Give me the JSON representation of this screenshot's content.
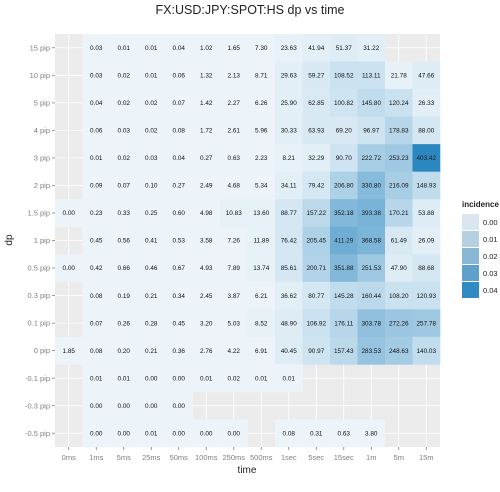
{
  "chart_data": {
    "type": "heatmap",
    "title": "FX:USD:JPY:SPOT:HS dp vs time",
    "xlabel": "time",
    "ylabel": "dp",
    "x_categories": [
      "0ms",
      "1ms",
      "5ms",
      "25ms",
      "50ms",
      "100ms",
      "250ms",
      "500ms",
      "1sec",
      "5sec",
      "15sec",
      "1m",
      "5m",
      "15m"
    ],
    "y_categories": [
      "15 pip",
      "10 pip",
      "5 pip",
      "4 pip",
      "3 pip",
      "2 pip",
      "1.5 pip",
      "1 pip",
      "0.5 pip",
      "0.3 pip",
      "0.1 pip",
      "0 pip",
      "-0.1 pip",
      "-0.3 pip",
      "-0.5 pip"
    ],
    "cell_labels": [
      [
        null,
        "0.03",
        "0.01",
        "0.01",
        "0.04",
        "1.02",
        "1.65",
        "7.30",
        "23.63",
        "41.94",
        "51.37",
        "31.22",
        null,
        null
      ],
      [
        null,
        "0.03",
        "0.02",
        "0.01",
        "0.06",
        "1.32",
        "2.13",
        "8.71",
        "29.63",
        "59.27",
        "108.52",
        "113.11",
        "21.78",
        "47.66"
      ],
      [
        null,
        "0.04",
        "0.02",
        "0.02",
        "0.07",
        "1.42",
        "2.27",
        "6.26",
        "25.90",
        "62.85",
        "100.82",
        "145.80",
        "120.24",
        "26.33"
      ],
      [
        null,
        "0.06",
        "0.03",
        "0.02",
        "0.08",
        "1.72",
        "2.61",
        "5.96",
        "30.33",
        "63.93",
        "69.20",
        "96.97",
        "178.83",
        "88.00"
      ],
      [
        null,
        "0.01",
        "0.02",
        "0.03",
        "0.04",
        "0.27",
        "0.63",
        "2.23",
        "8.21",
        "32.29",
        "90.70",
        "222.72",
        "253.23",
        "403.42"
      ],
      [
        null,
        "0.09",
        "0.07",
        "0.10",
        "0.27",
        "2.49",
        "4.68",
        "5.34",
        "34.11",
        "79.42",
        "206.80",
        "330.80",
        "216.09",
        "148.93"
      ],
      [
        "0.00",
        "0.23",
        "0.33",
        "0.25",
        "0.60",
        "4.98",
        "10.83",
        "13.60",
        "88.77",
        "157.22",
        "352.18",
        "393.38",
        "170.21",
        "53.88"
      ],
      [
        null,
        "0.45",
        "0.56",
        "0.41",
        "0.53",
        "3.58",
        "7.26",
        "11.89",
        "76.42",
        "205.45",
        "411.29",
        "368.58",
        "61.49",
        "26.09"
      ],
      [
        "0.00",
        "0.42",
        "0.66",
        "0.46",
        "0.67",
        "4.93",
        "7.89",
        "13.74",
        "85.61",
        "200.71",
        "351.88",
        "251.53",
        "47.90",
        "88.68"
      ],
      [
        null,
        "0.08",
        "0.19",
        "0.21",
        "0.34",
        "2.45",
        "3.87",
        "6.21",
        "36.62",
        "80.77",
        "145.28",
        "160.44",
        "108.20",
        "120.93"
      ],
      [
        null,
        "0.07",
        "0.26",
        "0.28",
        "0.45",
        "3.20",
        "5.03",
        "8.52",
        "48.90",
        "106.92",
        "176.11",
        "303.78",
        "272.26",
        "257.78"
      ],
      [
        "1.85",
        "0.08",
        "0.20",
        "0.21",
        "0.36",
        "2.76",
        "4.22",
        "6.91",
        "40.45",
        "90.97",
        "157.43",
        "283.53",
        "248.63",
        "140.03"
      ],
      [
        null,
        "0.01",
        "0.01",
        "0.00",
        "0.00",
        "0.01",
        "0.02",
        "0.01",
        "0.01",
        null,
        null,
        null,
        null,
        null
      ],
      [
        null,
        "0.00",
        "0.00",
        "0.00",
        "0.00",
        null,
        null,
        null,
        null,
        null,
        null,
        null,
        null,
        null
      ],
      [
        null,
        "0.00",
        "0.00",
        "0.01",
        "0.00",
        "0.00",
        "0.00",
        null,
        "0.08",
        "0.31",
        "0.63",
        "3.80",
        null,
        null
      ]
    ],
    "incidence": [
      [
        null,
        0,
        0,
        0,
        0,
        0,
        0,
        0,
        0.001,
        0.002,
        0.003,
        0.002,
        null,
        null
      ],
      [
        null,
        0,
        0,
        0,
        0,
        0,
        0,
        0,
        0.002,
        0.004,
        0.007,
        0.007,
        0.001,
        0.003
      ],
      [
        null,
        0,
        0,
        0,
        0,
        0,
        0,
        0,
        0.002,
        0.004,
        0.006,
        0.009,
        0.007,
        0.002
      ],
      [
        null,
        0,
        0,
        0,
        0,
        0,
        0,
        0,
        0.002,
        0.004,
        0.004,
        0.006,
        0.011,
        0.005
      ],
      [
        null,
        0,
        0,
        0,
        0,
        0,
        0,
        0,
        0.001,
        0.002,
        0.006,
        0.014,
        0.016,
        0.04
      ],
      [
        null,
        0,
        0,
        0,
        0,
        0,
        0,
        0,
        0.002,
        0.005,
        0.013,
        0.021,
        0.014,
        0.009
      ],
      [
        0,
        0,
        0,
        0,
        0,
        0,
        0.001,
        0.001,
        0.005,
        0.01,
        0.022,
        0.024,
        0.011,
        0.003
      ],
      [
        null,
        0,
        0,
        0,
        0,
        0,
        0,
        0.001,
        0.005,
        0.013,
        0.026,
        0.023,
        0.004,
        0.002
      ],
      [
        0,
        0,
        0,
        0,
        0,
        0,
        0,
        0.001,
        0.005,
        0.012,
        0.022,
        0.016,
        0.003,
        0.005
      ],
      [
        null,
        0,
        0,
        0,
        0,
        0,
        0,
        0,
        0.002,
        0.005,
        0.009,
        0.01,
        0.007,
        0.007
      ],
      [
        null,
        0,
        0,
        0,
        0,
        0,
        0,
        0.001,
        0.003,
        0.007,
        0.011,
        0.019,
        0.017,
        0.016
      ],
      [
        0,
        0,
        0,
        0,
        0,
        0,
        0,
        0,
        0.003,
        0.006,
        0.01,
        0.018,
        0.015,
        0.009
      ],
      [
        null,
        0,
        0,
        0,
        0,
        0,
        0,
        0,
        0,
        null,
        null,
        null,
        null,
        null
      ],
      [
        null,
        0,
        0,
        0,
        0,
        null,
        null,
        null,
        null,
        null,
        null,
        null,
        null,
        null
      ],
      [
        null,
        0,
        0,
        0,
        0,
        0,
        0,
        null,
        0,
        0,
        0,
        0,
        null,
        null
      ]
    ],
    "legend": {
      "title": "incidence",
      "entries": [
        {
          "label": "0.00",
          "color": "#dbe7f0"
        },
        {
          "label": "0.01",
          "color": "#b4d0e1"
        },
        {
          "label": "0.02",
          "color": "#89b8d6"
        },
        {
          "label": "0.03",
          "color": "#5ea2cc"
        },
        {
          "label": "0.04",
          "color": "#2f8bc2"
        }
      ],
      "position": "right"
    },
    "color_scale": {
      "low": "#ffffff",
      "high": "#2b87c0",
      "domain": [
        0,
        0.04
      ]
    },
    "colors": {
      "panel_background": "#ebebeb",
      "gridline": "#ffffff"
    }
  }
}
